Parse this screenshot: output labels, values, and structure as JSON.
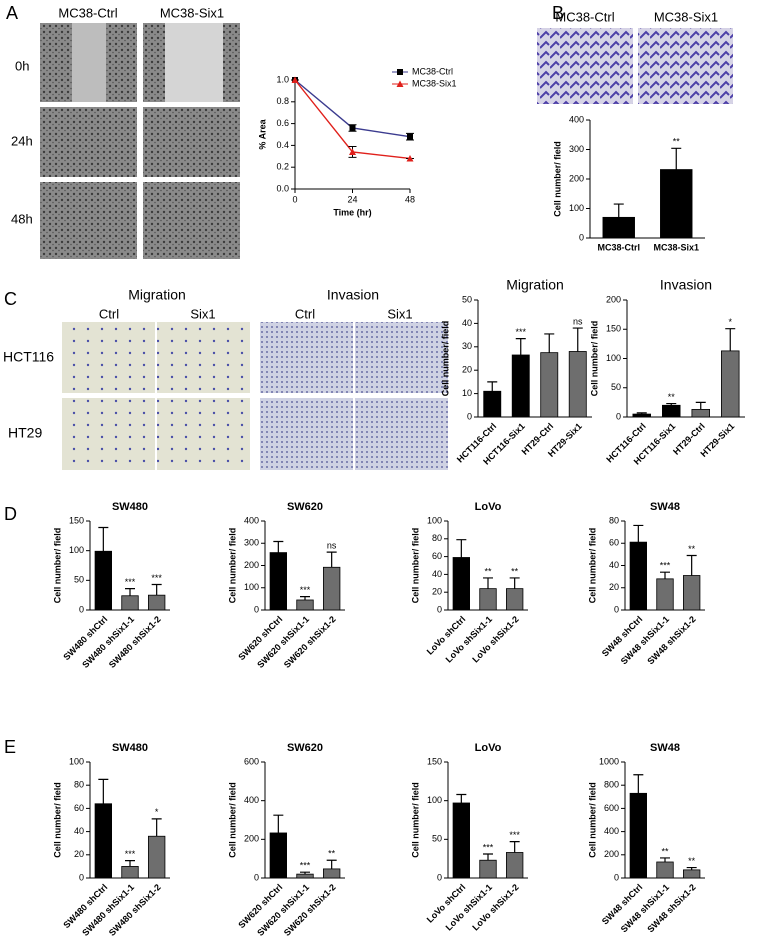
{
  "figure": {
    "panel_labels": [
      "A",
      "B",
      "C",
      "D",
      "E"
    ],
    "A_images": {
      "columns": [
        "MC38-Ctrl",
        "MC38-Six1"
      ],
      "rows": [
        "0h",
        "24h",
        "48h"
      ]
    },
    "B_images": {
      "columns": [
        "MC38-Ctrl",
        "MC38-Six1"
      ]
    },
    "C_images": {
      "groups": [
        "Migration",
        "Invasion"
      ],
      "columns": [
        "Ctrl",
        "Six1",
        "Ctrl",
        "Six1"
      ],
      "rows": [
        "HCT116",
        "HT29"
      ]
    }
  },
  "chart_data": [
    {
      "type": "line",
      "ylabel": "% Area",
      "xlabel": "Time (hr)",
      "x": [
        0,
        24,
        48
      ],
      "xlim": [
        0,
        48
      ],
      "xticks": [
        0,
        24,
        48
      ],
      "ylim": [
        0,
        1
      ],
      "yticks": [
        {
          "value": 0,
          "label": "0.0"
        },
        0.2,
        0.4,
        0.6,
        0.8,
        {
          "value": 1,
          "label": "1.0"
        }
      ],
      "legend": "upper right",
      "series": [
        {
          "name": "MC38-Ctrl",
          "color": "#3b3b8f",
          "marker_color": "#000000",
          "marker": "square",
          "values": [
            1.0,
            0.56,
            0.48
          ],
          "errors": [
            0,
            0.03,
            0.03
          ]
        },
        {
          "name": "MC38-Six1",
          "color": "#e0201b",
          "marker_color": "#e0201b",
          "marker": "triangle",
          "values": [
            1.0,
            0.34,
            0.28
          ],
          "errors": [
            0,
            0.05,
            0
          ]
        }
      ]
    },
    {
      "type": "bar",
      "ylabel": "Cell number/ field",
      "categories": [
        "MC38-Ctrl",
        "MC38-Six1"
      ],
      "values": [
        70,
        232
      ],
      "errors": [
        45,
        72
      ],
      "colors": [
        "#000000",
        "#000000"
      ],
      "annotations": [
        null,
        "**"
      ],
      "ylim": [
        0,
        400
      ],
      "yticks": [
        0,
        100,
        200,
        300,
        400
      ]
    },
    {
      "type": "bar",
      "title": "Migration",
      "ylabel": "Cell number/ field",
      "categories": [
        "HCT116-Ctrl",
        "HCT116-Six1",
        "HT29-Ctrl",
        "HT29-Six1"
      ],
      "values": [
        11,
        26.5,
        27.5,
        28
      ],
      "errors": [
        4,
        7,
        8,
        10
      ],
      "colors": [
        "#000000",
        "#000000",
        "#6e6e6e",
        "#6e6e6e"
      ],
      "annotations": [
        null,
        "***",
        null,
        "ns"
      ],
      "ylim": [
        0,
        50
      ],
      "yticks": [
        0,
        10,
        20,
        30,
        40,
        50
      ]
    },
    {
      "type": "bar",
      "title": "Invasion",
      "ylabel": "Cell number/ field",
      "categories": [
        "HCT116-Ctrl",
        "HCT116-Six1",
        "HT29-Ctrl",
        "HT29-Six1"
      ],
      "values": [
        5,
        20,
        13,
        113
      ],
      "errors": [
        2,
        3,
        12,
        38
      ],
      "colors": [
        "#000000",
        "#000000",
        "#6e6e6e",
        "#6e6e6e"
      ],
      "annotations": [
        null,
        "**",
        null,
        "*"
      ],
      "ylim": [
        0,
        200
      ],
      "yticks": [
        0,
        50,
        100,
        150,
        200
      ]
    },
    {
      "type": "bar",
      "title": "SW480",
      "ylabel": "Cell number/ field",
      "categories": [
        "SW480 shCtrl",
        "SW480 shSix1-1",
        "SW480 shSix1-2"
      ],
      "values": [
        99,
        24,
        25
      ],
      "errors": [
        40,
        12,
        18
      ],
      "colors": [
        "#000000",
        "#6e6e6e",
        "#6e6e6e"
      ],
      "annotations": [
        null,
        "***",
        "***"
      ],
      "ylim": [
        0,
        150
      ],
      "yticks": [
        0,
        50,
        100,
        150
      ]
    },
    {
      "type": "bar",
      "title": "SW620",
      "ylabel": "Cell number/ field",
      "categories": [
        "SW620 shCtrl",
        "SW620 shSix1-1",
        "SW620 shSix1-2"
      ],
      "values": [
        258,
        45,
        192
      ],
      "errors": [
        50,
        15,
        68
      ],
      "colors": [
        "#000000",
        "#6e6e6e",
        "#6e6e6e"
      ],
      "annotations": [
        null,
        "***",
        "ns"
      ],
      "ylim": [
        0,
        400
      ],
      "yticks": [
        0,
        100,
        200,
        300,
        400
      ]
    },
    {
      "type": "bar",
      "title": "LoVo",
      "ylabel": "Cell number/ field",
      "categories": [
        "LoVo shCtrl",
        "LoVo shSix1-1",
        "LoVo shSix1-2"
      ],
      "values": [
        59,
        24,
        24
      ],
      "errors": [
        20,
        12,
        12
      ],
      "colors": [
        "#000000",
        "#6e6e6e",
        "#6e6e6e"
      ],
      "annotations": [
        null,
        "**",
        "**"
      ],
      "ylim": [
        0,
        100
      ],
      "yticks": [
        0,
        20,
        40,
        60,
        80,
        100
      ]
    },
    {
      "type": "bar",
      "title": "SW48",
      "ylabel": "Cell number/ field",
      "categories": [
        "SW48 shCtrl",
        "SW48 shSix1-1",
        "SW48 shSix1-2"
      ],
      "values": [
        61,
        28,
        31
      ],
      "errors": [
        15,
        6,
        18
      ],
      "colors": [
        "#000000",
        "#6e6e6e",
        "#6e6e6e"
      ],
      "annotations": [
        null,
        "***",
        "**"
      ],
      "ylim": [
        0,
        80
      ],
      "yticks": [
        0,
        20,
        40,
        60,
        80
      ]
    },
    {
      "type": "bar",
      "title": "SW480",
      "ylabel": "Cell number/ field",
      "categories": [
        "SW480 shCtrl",
        "SW480 shSix1-1",
        "SW480 shSix1-2"
      ],
      "values": [
        64,
        10,
        36
      ],
      "errors": [
        21,
        5,
        15
      ],
      "colors": [
        "#000000",
        "#6e6e6e",
        "#6e6e6e"
      ],
      "annotations": [
        null,
        "***",
        "*"
      ],
      "ylim": [
        0,
        100
      ],
      "yticks": [
        0,
        20,
        40,
        60,
        80,
        100
      ]
    },
    {
      "type": "bar",
      "title": "SW620",
      "ylabel": "Cell number/ field",
      "categories": [
        "SW620 shCtrl",
        "SW620 shSix1-1",
        "SW620 shSix1-2"
      ],
      "values": [
        233,
        20,
        47
      ],
      "errors": [
        92,
        10,
        45
      ],
      "colors": [
        "#000000",
        "#6e6e6e",
        "#6e6e6e"
      ],
      "annotations": [
        null,
        "***",
        "**"
      ],
      "ylim": [
        0,
        600
      ],
      "yticks": [
        0,
        200,
        400,
        600
      ]
    },
    {
      "type": "bar",
      "title": "LoVo",
      "ylabel": "Cell number/ field",
      "categories": [
        "LoVo shCtrl",
        "LoVo shSix1-1",
        "LoVo shSix1-2"
      ],
      "values": [
        97,
        23,
        33
      ],
      "errors": [
        11,
        8,
        14
      ],
      "colors": [
        "#000000",
        "#6e6e6e",
        "#6e6e6e"
      ],
      "annotations": [
        null,
        "***",
        "***"
      ],
      "ylim": [
        0,
        150
      ],
      "yticks": [
        0,
        50,
        100,
        150
      ]
    },
    {
      "type": "bar",
      "title": "SW48",
      "ylabel": "Cell number/ field",
      "categories": [
        "SW48 shCtrl",
        "SW48 shSix1-1",
        "SW48 shSix1-2"
      ],
      "values": [
        730,
        138,
        70
      ],
      "errors": [
        160,
        35,
        20
      ],
      "colors": [
        "#000000",
        "#6e6e6e",
        "#6e6e6e"
      ],
      "annotations": [
        null,
        "**",
        "**"
      ],
      "ylim": [
        0,
        1000
      ],
      "yticks": [
        0,
        200,
        400,
        600,
        800,
        1000
      ]
    }
  ]
}
